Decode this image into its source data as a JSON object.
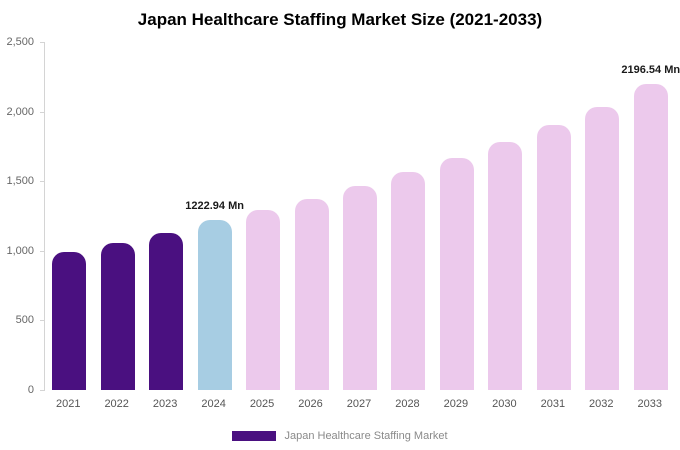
{
  "header": {
    "title": "Japan Healthcare Staffing Market Size (2021-2033)"
  },
  "legend": {
    "label": "Japan Healthcare Staffing Market",
    "swatch_color": "#4a1080"
  },
  "chart_data": {
    "type": "bar",
    "title": "Japan Healthcare Staffing Market Size (2021-2033)",
    "categories": [
      "2021",
      "2022",
      "2023",
      "2024",
      "2025",
      "2026",
      "2027",
      "2028",
      "2029",
      "2030",
      "2031",
      "2032",
      "2033"
    ],
    "values": [
      990,
      1056,
      1125,
      1222.94,
      1290,
      1374,
      1467,
      1564,
      1670,
      1782,
      1901,
      2030,
      2196.54
    ],
    "unit": "Mn",
    "bar_colors": [
      "#4a1080",
      "#4a1080",
      "#4a1080",
      "#a7cde3",
      "#ecc9ec",
      "#ecc9ec",
      "#ecc9ec",
      "#ecc9ec",
      "#ecc9ec",
      "#ecc9ec",
      "#ecc9ec",
      "#ecc9ec",
      "#ecc9ec"
    ],
    "ylim": [
      0,
      2500
    ],
    "y_ticks": [
      0,
      500,
      1000,
      1500,
      2000,
      2500
    ],
    "y_tick_labels": [
      "0",
      "500",
      "1,000",
      "1,500",
      "2,000",
      "2,500"
    ],
    "xlabel": "",
    "ylabel": "",
    "grid": false,
    "legend_position": "bottom",
    "annotations": [
      {
        "category": "2024",
        "text": "1222.94 Mn"
      },
      {
        "category": "2033",
        "text": "2196.54 Mn"
      }
    ]
  }
}
